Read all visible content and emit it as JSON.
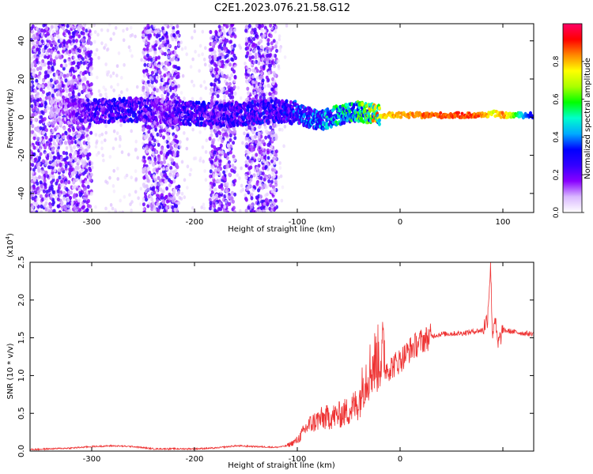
{
  "figure": {
    "title": "C2E1.2023.076.21.58.G12"
  },
  "chart_data": [
    {
      "type": "heatmap",
      "title": "C2E1.2023.076.21.58.G12",
      "xlabel": "Height of straight line (km)",
      "ylabel": "Frequency (Hz)",
      "xlim": [
        -360,
        130
      ],
      "ylim": [
        -50,
        49
      ],
      "xticks": [
        -300,
        -200,
        -100,
        0,
        100
      ],
      "yticks": [
        -40,
        -20,
        0,
        20,
        40
      ],
      "colorbar": {
        "label": "Normalized spectral amplitude",
        "range": [
          0.0,
          1.0
        ],
        "ticks": [
          "0.0",
          "0.2",
          "0.4",
          "0.6",
          "0.8"
        ],
        "tick_values": [
          0.0,
          0.2,
          0.4,
          0.6,
          0.8
        ],
        "colormap": [
          "#ffffff",
          "#d9b8ff",
          "#8800ff",
          "#3300ff",
          "#0000ff",
          "#00aaff",
          "#00ffcc",
          "#00ff00",
          "#aaff00",
          "#ffff00",
          "#ff8800",
          "#ff0000",
          "#ff0066"
        ]
      },
      "signal_profile": {
        "x": [
          -340,
          -300,
          -260,
          -230,
          -200,
          -170,
          -150,
          -120,
          -100,
          -80,
          -60,
          -40,
          -20,
          0,
          20,
          60,
          80,
          90,
          100,
          120,
          130
        ],
        "center_frequency_hz": [
          3,
          3,
          4,
          3,
          2,
          1,
          2,
          3,
          2,
          -2,
          1,
          3,
          1,
          1,
          1,
          1,
          1,
          2,
          1,
          1,
          1
        ],
        "amplitude": [
          0.1,
          0.25,
          0.3,
          0.2,
          0.3,
          0.25,
          0.3,
          0.3,
          0.35,
          0.4,
          0.5,
          0.55,
          0.8,
          0.85,
          0.9,
          0.92,
          0.9,
          0.75,
          0.9,
          0.45,
          0.3
        ]
      },
      "noise_bands": [
        [
          -360,
          -300
        ],
        [
          -250,
          -215
        ],
        [
          -185,
          -160
        ],
        [
          -150,
          -120
        ]
      ],
      "grid": false
    },
    {
      "type": "line",
      "xlabel": "Height of straight line (km)",
      "ylabel": "SNR (10 * v/v)",
      "y_multiplier_label": "(x10",
      "y_multiplier_exp": "4",
      "y_multiplier_close": ")",
      "xlim": [
        -360,
        130
      ],
      "ylim": [
        0.0,
        2.5
      ],
      "xticks": [
        -300,
        -200,
        -100,
        0
      ],
      "yticks": [
        0.0,
        0.5,
        1.0,
        1.5,
        2.0,
        2.5
      ],
      "ytick_labels": [
        "0.0",
        "0.5",
        "1.0",
        "1.5",
        "2.0",
        "2.5"
      ],
      "color": "#ee3333",
      "series": [
        {
          "x": [
            -360,
            -340,
            -320,
            -300,
            -280,
            -260,
            -240,
            -220,
            -200,
            -180,
            -160,
            -140,
            -120,
            -110,
            -100,
            -90,
            -80,
            -70,
            -60,
            -50,
            -40,
            -35,
            -30,
            -25,
            -20,
            -15,
            -10,
            -5,
            0,
            10,
            20,
            30,
            40,
            60,
            80,
            85,
            88,
            90,
            92,
            95,
            100,
            110,
            120,
            130
          ],
          "values": [
            0.01,
            0.02,
            0.03,
            0.05,
            0.06,
            0.05,
            0.02,
            0.02,
            0.02,
            0.03,
            0.06,
            0.05,
            0.04,
            0.06,
            0.12,
            0.28,
            0.35,
            0.38,
            0.4,
            0.45,
            0.55,
            0.8,
            0.9,
            1.0,
            1.05,
            1.1,
            1.1,
            1.15,
            1.2,
            1.35,
            1.45,
            1.52,
            1.55,
            1.56,
            1.6,
            1.75,
            2.45,
            1.5,
            1.8,
            1.4,
            1.6,
            1.58,
            1.56,
            1.55
          ]
        }
      ]
    }
  ]
}
